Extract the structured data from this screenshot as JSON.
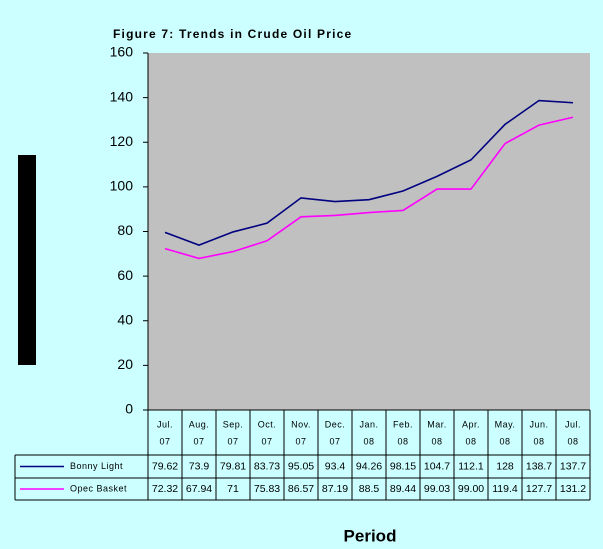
{
  "chart_data": {
    "type": "line",
    "title": "Figure 7: Trends in Crude Oil Price",
    "x_label": "Period",
    "categories": [
      [
        "Jul.",
        "07"
      ],
      [
        "Aug.",
        "07"
      ],
      [
        "Sep.",
        "07"
      ],
      [
        "Oct.",
        "07"
      ],
      [
        "Nov.",
        "07"
      ],
      [
        "Dec.",
        "07"
      ],
      [
        "Jan.",
        "08"
      ],
      [
        "Feb.",
        "08"
      ],
      [
        "Mar.",
        "08"
      ],
      [
        "Apr.",
        "08"
      ],
      [
        "May.",
        "08"
      ],
      [
        "Jun.",
        "08"
      ],
      [
        "Jul.",
        "08"
      ]
    ],
    "series": [
      {
        "name": "Bonny Light",
        "color": "#000080",
        "values": [
          79.62,
          73.9,
          79.81,
          83.73,
          95.05,
          93.4,
          94.26,
          98.15,
          104.7,
          112.1,
          128,
          138.7,
          137.7
        ]
      },
      {
        "name": "Opec Basket",
        "color": "#ff00ff",
        "values": [
          72.32,
          67.94,
          71,
          75.83,
          86.57,
          87.19,
          88.5,
          89.44,
          99.03,
          99,
          119.4,
          127.7,
          131.2
        ],
        "value_labels": [
          "72.32",
          "67.94",
          "71",
          "75.83",
          "86.57",
          "87.19",
          "88.5",
          "89.44",
          "99.03",
          "99.00",
          "119.4",
          "127.7",
          "131.2"
        ]
      }
    ],
    "ylim": [
      0,
      160
    ],
    "yticks": [
      0,
      20,
      40,
      60,
      80,
      100,
      120,
      140,
      160
    ],
    "grid": false,
    "plot_background": "#c0c0c0"
  }
}
